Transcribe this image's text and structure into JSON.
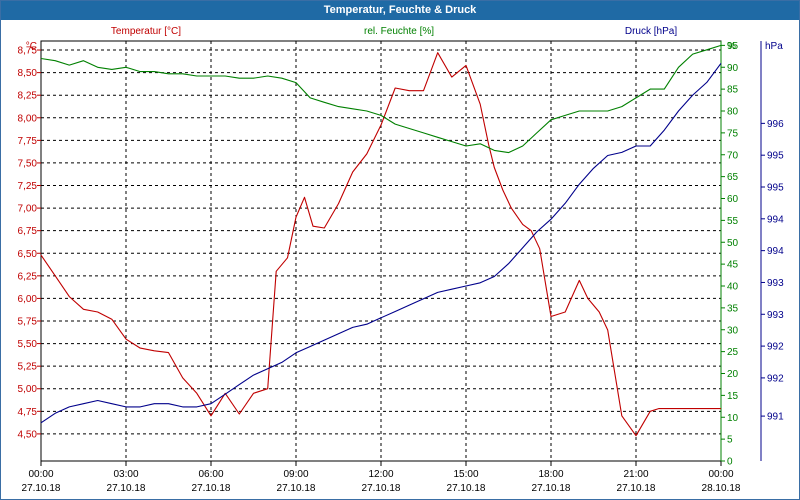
{
  "window": {
    "title": "Temperatur, Feuchte & Druck"
  },
  "chart_data": {
    "type": "line",
    "grid": true,
    "axes": {
      "temperature": {
        "title": "Temperatur [°C]",
        "unit": "°C",
        "range": [
          4.2,
          8.85
        ],
        "ticks": [
          "4,50",
          "4,75",
          "5,00",
          "5,25",
          "5,50",
          "5,75",
          "6,00",
          "6,25",
          "6,50",
          "6,75",
          "7,00",
          "7,25",
          "7,50",
          "7,75",
          "8,00",
          "8,25",
          "8,50",
          "8,75"
        ],
        "color": "#c00000"
      },
      "humidity": {
        "title": "rel. Feuchte [%]",
        "unit": "%",
        "range": [
          0,
          96
        ],
        "ticks": [
          "0",
          "5",
          "10",
          "15",
          "20",
          "25",
          "30",
          "35",
          "40",
          "45",
          "50",
          "55",
          "60",
          "65",
          "70",
          "75",
          "80",
          "85",
          "90",
          "95",
          "%"
        ],
        "color": "#008000"
      },
      "pressure": {
        "title": "Druck [hPa]",
        "unit": "hPa",
        "range": [
          990.2,
          996.8
        ],
        "tick_labels": [
          "991",
          "992",
          "992",
          "993",
          "993",
          "994",
          "994",
          "995",
          "995",
          "996"
        ],
        "color": "#00008b"
      },
      "x": {
        "labels": [
          {
            "time": "00:00",
            "date": "27.10.18"
          },
          {
            "time": "03:00",
            "date": "27.10.18"
          },
          {
            "time": "06:00",
            "date": "27.10.18"
          },
          {
            "time": "09:00",
            "date": "27.10.18"
          },
          {
            "time": "12:00",
            "date": "27.10.18"
          },
          {
            "time": "15:00",
            "date": "27.10.18"
          },
          {
            "time": "18:00",
            "date": "27.10.18"
          },
          {
            "time": "21:00",
            "date": "27.10.18"
          },
          {
            "time": "00:00",
            "date": "28.10.18"
          }
        ],
        "range_hours": [
          0,
          24
        ]
      }
    },
    "series": [
      {
        "name": "Temperatur [°C]",
        "axis": "temperature",
        "color": "#c00000",
        "x": [
          0,
          0.5,
          1,
          1.5,
          2,
          2.5,
          3,
          3.5,
          4,
          4.5,
          5,
          5.5,
          6,
          6.5,
          7,
          7.5,
          8,
          8.3,
          8.7,
          9,
          9.3,
          9.6,
          10,
          10.5,
          11,
          11.5,
          12,
          12.5,
          13,
          13.5,
          14,
          14.5,
          15,
          15.5,
          15.8,
          16,
          16.3,
          16.6,
          17,
          17.3,
          17.6,
          18,
          18.5,
          19,
          19.3,
          19.7,
          20,
          20.5,
          21,
          21.5,
          21.8,
          22,
          22.5,
          22.8,
          23,
          23.3,
          23.6,
          24
        ],
        "y": [
          6.48,
          6.25,
          6.02,
          5.88,
          5.85,
          5.77,
          5.55,
          5.45,
          5.42,
          5.4,
          5.12,
          4.95,
          4.7,
          4.95,
          4.72,
          4.95,
          5.0,
          6.3,
          6.45,
          6.9,
          7.12,
          6.8,
          6.78,
          7.05,
          7.4,
          7.6,
          7.92,
          8.33,
          8.3,
          8.3,
          8.72,
          8.45,
          8.58,
          8.15,
          7.7,
          7.45,
          7.2,
          7.0,
          6.82,
          6.75,
          6.55,
          5.8,
          5.85,
          6.2,
          6.0,
          5.85,
          5.65,
          4.7,
          4.48,
          4.75,
          4.78,
          4.78,
          4.78,
          4.78,
          4.78,
          4.78,
          4.78,
          4.78
        ]
      },
      {
        "name": "rel. Feuchte [%]",
        "axis": "humidity",
        "color": "#008000",
        "x": [
          0,
          0.5,
          1,
          1.5,
          2,
          2.5,
          3,
          3.5,
          4,
          4.5,
          5,
          5.5,
          6,
          6.5,
          7,
          7.5,
          8,
          8.5,
          9,
          9.5,
          10,
          10.5,
          11,
          11.5,
          12,
          12.5,
          13,
          13.5,
          14,
          14.5,
          15,
          15.5,
          16,
          16.5,
          17,
          17.5,
          18,
          18.5,
          19,
          19.5,
          20,
          20.5,
          21,
          21.5,
          22,
          22.5,
          23,
          23.5,
          24
        ],
        "y": [
          92,
          91.5,
          90.5,
          91.5,
          90,
          89.5,
          90,
          89,
          89,
          88.5,
          88.5,
          88,
          88,
          88,
          87.5,
          87.5,
          88,
          87.5,
          86.5,
          83,
          82,
          81,
          80.5,
          80,
          79,
          77,
          76,
          75,
          74,
          73,
          72,
          72.5,
          71,
          70.5,
          72,
          75,
          78,
          79,
          80,
          80,
          80,
          81,
          83,
          85,
          85,
          90,
          93,
          94,
          95
        ]
      },
      {
        "name": "Druck [hPa]",
        "axis": "pressure",
        "color": "#00008b",
        "x": [
          0,
          0.5,
          1,
          1.5,
          2,
          2.5,
          3,
          3.5,
          4,
          4.5,
          5,
          5.5,
          6,
          6.5,
          7,
          7.5,
          8,
          8.5,
          9,
          9.5,
          10,
          10.5,
          11,
          11.5,
          12,
          12.5,
          13,
          13.5,
          14,
          14.5,
          15,
          15.5,
          16,
          16.5,
          17,
          17.5,
          18,
          18.5,
          19,
          19.5,
          20,
          20.5,
          21,
          21.5,
          22,
          22.5,
          23,
          23.5,
          24
        ],
        "y": [
          990.8,
          990.95,
          991.05,
          991.1,
          991.15,
          991.1,
          991.05,
          991.05,
          991.1,
          991.1,
          991.05,
          991.05,
          991.1,
          991.25,
          991.4,
          991.55,
          991.65,
          991.75,
          991.9,
          992.0,
          992.1,
          992.2,
          992.3,
          992.35,
          992.45,
          992.55,
          992.65,
          992.75,
          992.85,
          992.9,
          992.95,
          993.0,
          993.1,
          993.3,
          993.55,
          993.8,
          994.0,
          994.25,
          994.55,
          994.8,
          995.0,
          995.05,
          995.15,
          995.15,
          995.4,
          995.7,
          995.95,
          996.15,
          996.45
        ]
      }
    ]
  }
}
